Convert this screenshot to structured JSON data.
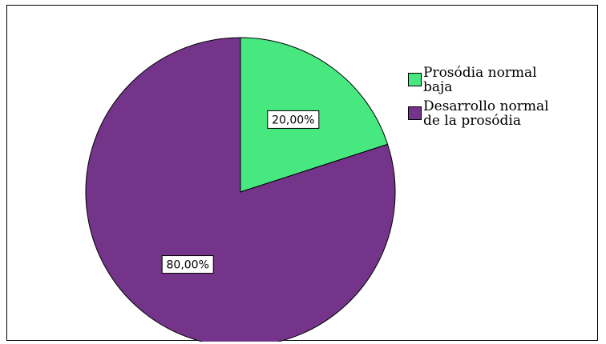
{
  "chart_data": {
    "type": "pie",
    "title": "",
    "legend_position": "right",
    "start_angle_deg": 0,
    "direction": "clockwise",
    "slices": [
      {
        "name": "Prosódia normal\nbaja",
        "value": 20,
        "label": "20,00%",
        "color": "#47e880"
      },
      {
        "name": "Desarrollo normal\nde la prosódia",
        "value": 80,
        "label": "80,00%",
        "color": "#74348a"
      }
    ]
  }
}
